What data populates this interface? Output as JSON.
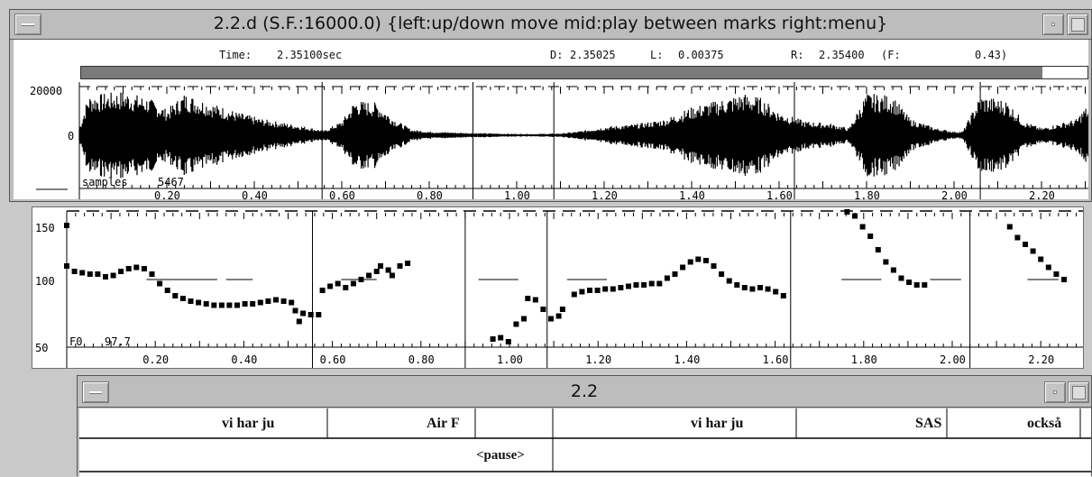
{
  "waveform_window": {
    "title": "2.2.d (S.F.:16000.0) {left:up/down move  mid:play between marks  right:menu}",
    "time_label": "Time:",
    "time_value": "2.35100sec",
    "d_label": "D:",
    "d_value": "2.35025",
    "l_label": "L:",
    "l_value": "0.00375",
    "r_label": "R:",
    "r_value": "2.35400",
    "f_label": "(F:",
    "f_value": "0.43)",
    "progress_fraction": 0.955,
    "y_axis_labels": [
      "20000",
      "0"
    ],
    "samples_label": "samples",
    "samples_value": "5467",
    "x_ticks": [
      "0.20",
      "0.40",
      "0.60",
      "0.80",
      "1.00",
      "1.20",
      "1.40",
      "1.60",
      "1.80",
      "2.00",
      "2.20"
    ]
  },
  "pitch_panel": {
    "y_axis_labels": [
      "150",
      "100",
      "50"
    ],
    "f0_label": "F0",
    "f0_value": "97.7",
    "x_ticks": [
      "0.20",
      "0.40",
      "0.60",
      "0.80",
      "1.00",
      "1.20",
      "1.40",
      "1.60",
      "1.80",
      "2.00",
      "2.20"
    ]
  },
  "label_window": {
    "title": "2.2",
    "labels": [
      "vi har ju",
      "Air F",
      "vi har ju",
      "SAS",
      "också"
    ],
    "lower_labels": [
      "<pause>"
    ]
  },
  "colors": {
    "background": "#c9c9c9",
    "titlebar": "#bdbdbd",
    "progress_bar": "#7a7a7a",
    "plot_ink": "#000000"
  },
  "icons": [
    "window-menu-icon",
    "minimize-icon",
    "maximize-icon"
  ]
}
